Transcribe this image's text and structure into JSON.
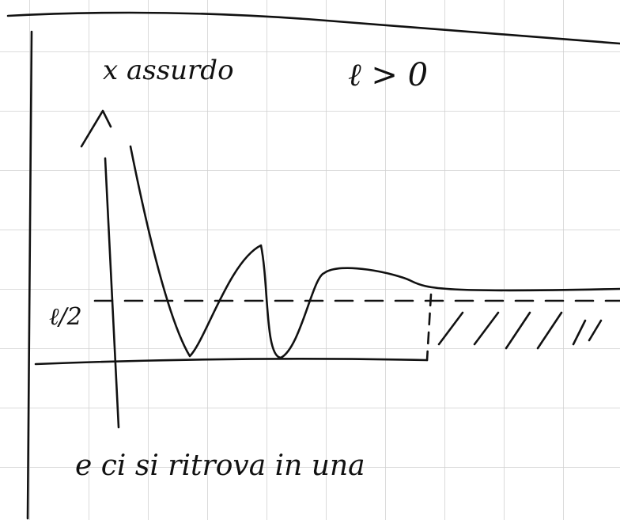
{
  "header": {
    "title": "x assurdo",
    "condition": "ℓ > 0"
  },
  "labels": {
    "half": "ℓ/2"
  },
  "caption": "e ci si ritrova in una"
}
